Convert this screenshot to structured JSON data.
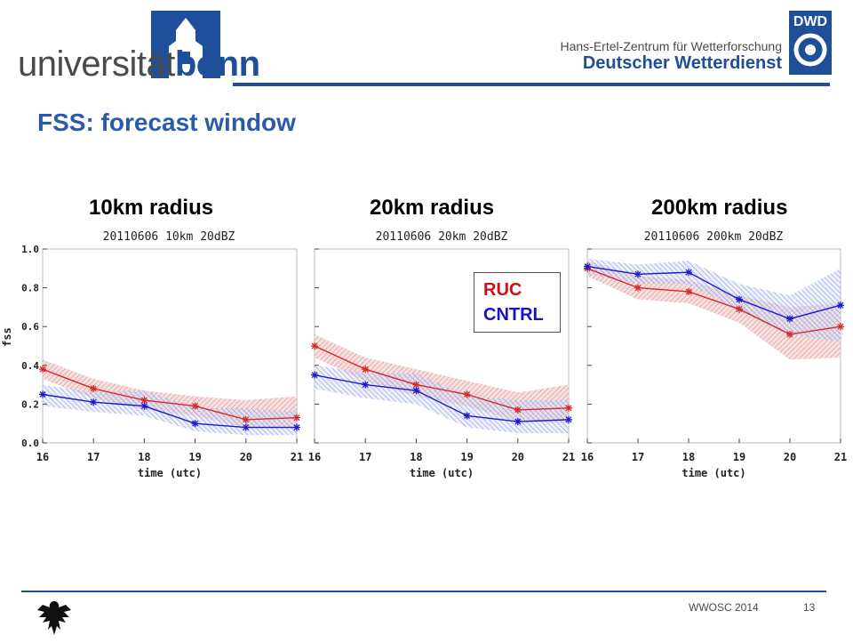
{
  "header": {
    "university_prefix": "universität",
    "university_suffix": "bonn",
    "dwd_line1": "Hans-Ertel-Zentrum für Wetterforschung",
    "dwd_line2": "Deutscher Wetterdienst",
    "dwd_badge": "DWD"
  },
  "slide_title": "FSS: forecast window",
  "radius_labels": [
    "10km radius",
    "20km radius",
    "200km radius"
  ],
  "legend": {
    "ruc": "RUC",
    "cntrl": "CNTRL"
  },
  "footer": {
    "text": "WWOSC 2014",
    "page": "13"
  },
  "colors": {
    "ruc": "#d42a2a",
    "cntrl": "#1a1ad0",
    "brand": "#1f4e9a"
  },
  "chart_data": [
    {
      "type": "line",
      "title": "20110606    10km   20dBZ",
      "xlabel": "time (utc)",
      "ylabel": "fss",
      "x": [
        16,
        17,
        18,
        19,
        20,
        21
      ],
      "xlim": [
        16,
        21
      ],
      "ylim": [
        0.0,
        1.0
      ],
      "yticks": [
        "0.0",
        "0.2",
        "0.4",
        "0.6",
        "0.8",
        "1.0"
      ],
      "series": [
        {
          "name": "RUC",
          "values": [
            0.38,
            0.28,
            0.22,
            0.19,
            0.12,
            0.13
          ],
          "band": [
            [
              0.33,
              0.43
            ],
            [
              0.23,
              0.33
            ],
            [
              0.17,
              0.27
            ],
            [
              0.14,
              0.24
            ],
            [
              0.08,
              0.22
            ],
            [
              0.08,
              0.24
            ]
          ]
        },
        {
          "name": "CNTRL",
          "values": [
            0.25,
            0.21,
            0.19,
            0.1,
            0.08,
            0.08
          ],
          "band": [
            [
              0.19,
              0.3
            ],
            [
              0.16,
              0.26
            ],
            [
              0.14,
              0.27
            ],
            [
              0.06,
              0.18
            ],
            [
              0.04,
              0.18
            ],
            [
              0.04,
              0.16
            ]
          ]
        }
      ]
    },
    {
      "type": "line",
      "title": "20110606    20km   20dBZ",
      "xlabel": "time (utc)",
      "ylabel": "",
      "x": [
        16,
        17,
        18,
        19,
        20,
        21
      ],
      "xlim": [
        16,
        21
      ],
      "ylim": [
        0.0,
        1.0
      ],
      "series": [
        {
          "name": "RUC",
          "values": [
            0.5,
            0.38,
            0.3,
            0.25,
            0.17,
            0.18
          ],
          "band": [
            [
              0.44,
              0.56
            ],
            [
              0.32,
              0.44
            ],
            [
              0.24,
              0.38
            ],
            [
              0.19,
              0.32
            ],
            [
              0.11,
              0.26
            ],
            [
              0.1,
              0.3
            ]
          ]
        },
        {
          "name": "CNTRL",
          "values": [
            0.35,
            0.3,
            0.27,
            0.14,
            0.11,
            0.12
          ],
          "band": [
            [
              0.28,
              0.4
            ],
            [
              0.23,
              0.36
            ],
            [
              0.2,
              0.36
            ],
            [
              0.08,
              0.24
            ],
            [
              0.05,
              0.22
            ],
            [
              0.05,
              0.22
            ]
          ]
        }
      ]
    },
    {
      "type": "line",
      "title": "20110606    200km   20dBZ",
      "xlabel": "time (utc)",
      "ylabel": "",
      "x": [
        16,
        17,
        18,
        19,
        20,
        21
      ],
      "xlim": [
        16,
        21
      ],
      "ylim": [
        0.0,
        1.0
      ],
      "series": [
        {
          "name": "RUC",
          "values": [
            0.9,
            0.8,
            0.78,
            0.69,
            0.56,
            0.6
          ],
          "band": [
            [
              0.86,
              0.94
            ],
            [
              0.74,
              0.86
            ],
            [
              0.72,
              0.84
            ],
            [
              0.62,
              0.76
            ],
            [
              0.43,
              0.7
            ],
            [
              0.44,
              0.72
            ]
          ]
        },
        {
          "name": "CNTRL",
          "values": [
            0.91,
            0.87,
            0.88,
            0.74,
            0.64,
            0.71
          ],
          "band": [
            [
              0.87,
              0.95
            ],
            [
              0.82,
              0.92
            ],
            [
              0.82,
              0.94
            ],
            [
              0.68,
              0.82
            ],
            [
              0.56,
              0.76
            ],
            [
              0.52,
              0.9
            ]
          ]
        }
      ]
    }
  ]
}
